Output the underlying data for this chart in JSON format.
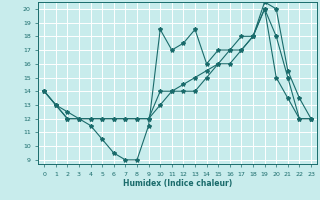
{
  "title": "",
  "xlabel": "Humidex (Indice chaleur)",
  "xlim": [
    -0.5,
    23.5
  ],
  "ylim": [
    8.7,
    20.5
  ],
  "xticks": [
    0,
    1,
    2,
    3,
    4,
    5,
    6,
    7,
    8,
    9,
    10,
    11,
    12,
    13,
    14,
    15,
    16,
    17,
    18,
    19,
    20,
    21,
    22,
    23
  ],
  "yticks": [
    9,
    10,
    11,
    12,
    13,
    14,
    15,
    16,
    17,
    18,
    19,
    20
  ],
  "bg_color": "#c8ecec",
  "grid_color": "#ffffff",
  "line_color": "#1a6b6b",
  "line1_x": [
    0,
    1,
    2,
    3,
    4,
    5,
    6,
    7,
    8,
    9,
    10,
    11,
    12,
    13,
    14,
    15,
    16,
    17,
    18,
    19,
    20,
    21,
    22,
    23
  ],
  "line1_y": [
    14,
    13,
    12.5,
    12,
    11.5,
    10.5,
    9.5,
    9,
    9,
    11.5,
    18.5,
    17,
    17.5,
    18.5,
    16,
    17,
    17,
    18,
    18,
    20,
    15,
    13.5,
    12,
    12
  ],
  "line2_x": [
    0,
    1,
    2,
    3,
    4,
    5,
    6,
    7,
    8,
    9,
    10,
    11,
    12,
    13,
    14,
    15,
    16,
    17,
    18,
    19,
    20,
    21,
    22,
    23
  ],
  "line2_y": [
    14,
    13,
    12,
    12,
    12,
    12,
    12,
    12,
    12,
    12,
    14,
    14,
    14,
    14,
    15,
    16,
    16,
    17,
    18,
    20,
    18,
    15,
    12,
    12
  ],
  "line3_x": [
    0,
    1,
    2,
    3,
    4,
    5,
    6,
    7,
    8,
    9,
    10,
    11,
    12,
    13,
    14,
    15,
    16,
    17,
    18,
    19,
    20,
    21,
    22,
    23
  ],
  "line3_y": [
    14,
    13,
    12,
    12,
    12,
    12,
    12,
    12,
    12,
    12,
    13,
    14,
    14.5,
    15,
    15.5,
    16,
    17,
    17,
    18,
    20.5,
    20,
    15.5,
    13.5,
    12
  ]
}
